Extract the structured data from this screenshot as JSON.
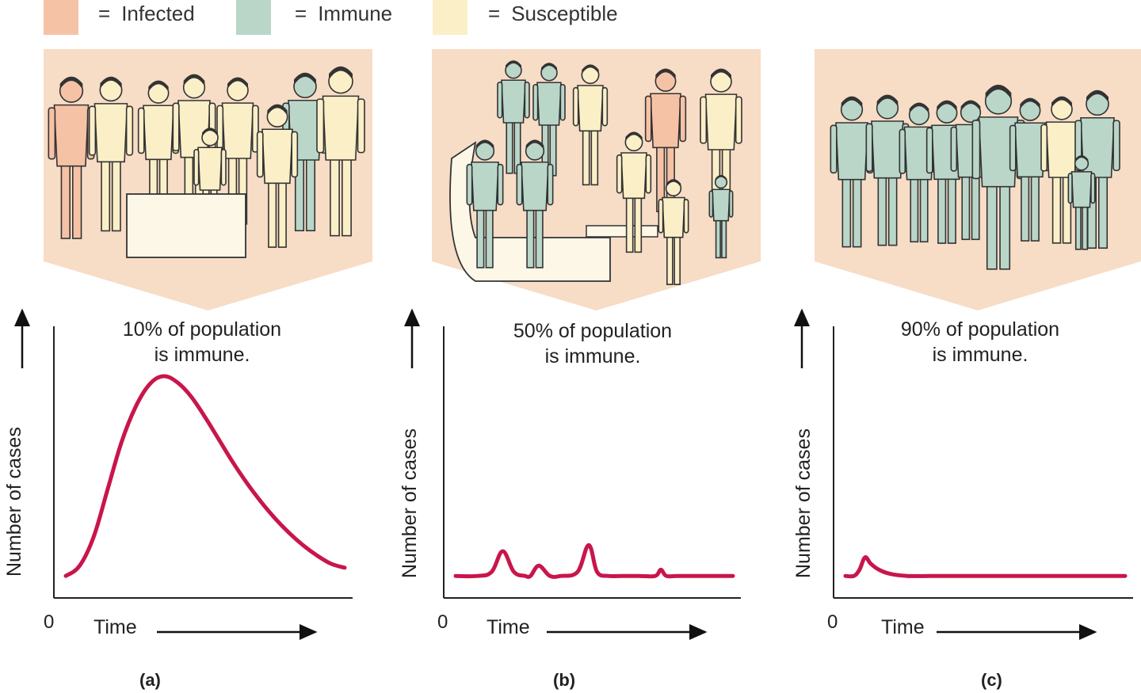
{
  "legend": [
    {
      "label": "Infected",
      "color": "#f6c2a6"
    },
    {
      "label": "Immune",
      "color": "#b9d6c9"
    },
    {
      "label": "Susceptible",
      "color": "#fbefc8"
    }
  ],
  "legend_eq": "=",
  "panels": [
    {
      "letter": "(a)",
      "caption_line1": "10% of population",
      "caption_line2": "is immune."
    },
    {
      "letter": "(b)",
      "caption_line1": "50% of population",
      "caption_line2": "is immune."
    },
    {
      "letter": "(c)",
      "caption_line1": "90% of population",
      "caption_line2": "is immune."
    }
  ],
  "axis": {
    "y_label": "Number of cases",
    "x_label": "Time",
    "origin": "0"
  },
  "colors": {
    "backdrop": "#f7dcc6",
    "curve": "#c8164b"
  },
  "chart_data": [
    {
      "type": "line",
      "title": "10% of population is immune.",
      "xlabel": "Time",
      "ylabel": "Number of cases",
      "x": [
        0,
        5,
        10,
        15,
        20,
        25,
        30,
        35,
        40,
        45,
        50,
        55,
        60,
        65,
        70,
        75,
        80,
        85,
        90,
        95,
        100
      ],
      "values": [
        3,
        8,
        22,
        45,
        68,
        85,
        96,
        100,
        97,
        90,
        80,
        69,
        58,
        48,
        39,
        31,
        24,
        18,
        13,
        9,
        7
      ],
      "ylim": [
        0,
        100
      ]
    },
    {
      "type": "line",
      "title": "50% of population is immune.",
      "xlabel": "Time",
      "ylabel": "Number of cases",
      "x": [
        0,
        8,
        13,
        17,
        21,
        25,
        27,
        30,
        34,
        38,
        44,
        48,
        51,
        55,
        60,
        66,
        72,
        74,
        76,
        80,
        90,
        100
      ],
      "values": [
        3,
        3,
        5,
        15,
        5,
        3,
        3,
        8,
        3,
        3,
        5,
        18,
        5,
        3,
        3,
        3,
        3,
        6,
        3,
        3,
        3,
        3
      ],
      "ylim": [
        0,
        100
      ]
    },
    {
      "type": "line",
      "title": "90% of population is immune.",
      "xlabel": "Time",
      "ylabel": "Number of cases",
      "x": [
        0,
        3,
        5,
        7,
        9,
        12,
        16,
        22,
        30,
        40,
        60,
        80,
        100
      ],
      "values": [
        3,
        3,
        6,
        12,
        9,
        6,
        4,
        3,
        3,
        3,
        3,
        3,
        3
      ],
      "ylim": [
        0,
        100
      ]
    }
  ]
}
